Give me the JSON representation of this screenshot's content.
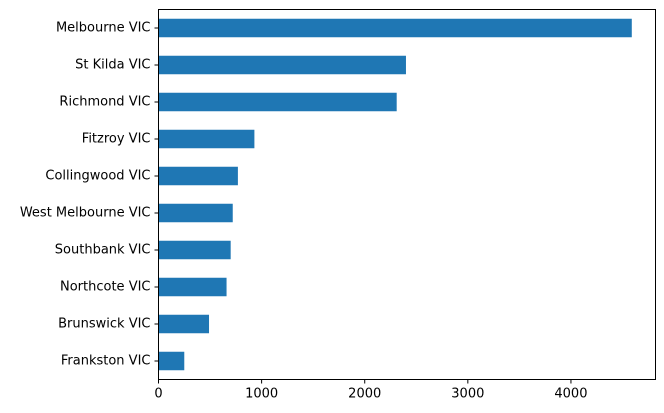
{
  "chart_data": {
    "type": "bar",
    "orientation": "horizontal",
    "categories": [
      "Melbourne VIC",
      "St Kilda VIC",
      "Richmond VIC",
      "Fitzroy VIC",
      "Collingwood VIC",
      "West Melbourne VIC",
      "Southbank VIC",
      "Northcote VIC",
      "Brunswick VIC",
      "Frankston VIC"
    ],
    "values": [
      4590,
      2400,
      2310,
      930,
      770,
      720,
      700,
      660,
      490,
      250
    ],
    "title": "",
    "xlabel": "",
    "ylabel": "",
    "xlim": [
      0,
      4820
    ],
    "xticks": [
      0,
      1000,
      2000,
      3000,
      4000
    ],
    "xtick_labels": [
      "0",
      "1000",
      "2000",
      "3000",
      "4000"
    ],
    "grid": false,
    "bar_color": "#1f77b4"
  }
}
